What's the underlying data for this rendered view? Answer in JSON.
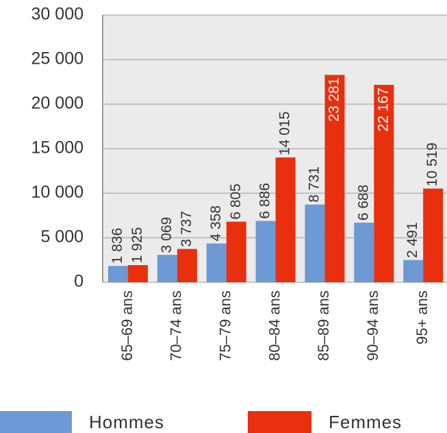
{
  "chart_data": {
    "type": "bar",
    "categories": [
      "65–69 ans",
      "70–74 ans",
      "75–79 ans",
      "80–84 ans",
      "85–89 ans",
      "90–94 ans",
      "95+ ans"
    ],
    "series": [
      {
        "name": "Hommes",
        "color": "#6d99d4",
        "values": [
          1836,
          3069,
          4358,
          6886,
          8731,
          6688,
          2491
        ],
        "value_labels": [
          "1 836",
          "3 069",
          "4 358",
          "6 886",
          "8 731",
          "6 688",
          "2 491"
        ]
      },
      {
        "name": "Femmes",
        "color": "#e8300e",
        "values": [
          1925,
          3737,
          6805,
          14015,
          23281,
          22167,
          10519
        ],
        "value_labels": [
          "1 925",
          "3 737",
          "6 805",
          "14 015",
          "23 281",
          "22 167",
          "10 519"
        ]
      }
    ],
    "ylim": [
      0,
      30000
    ],
    "yticks": [
      0,
      {
        "value": 5000,
        "label": "5 000"
      },
      {
        "value": 10000,
        "label": "10 000"
      },
      {
        "value": 15000,
        "label": "15 000"
      },
      {
        "value": 20000,
        "label": "20 000"
      },
      {
        "value": 25000,
        "label": "25 000"
      },
      {
        "value": 30000,
        "label": "30 000"
      }
    ],
    "grid": true,
    "legend": "bottom"
  }
}
